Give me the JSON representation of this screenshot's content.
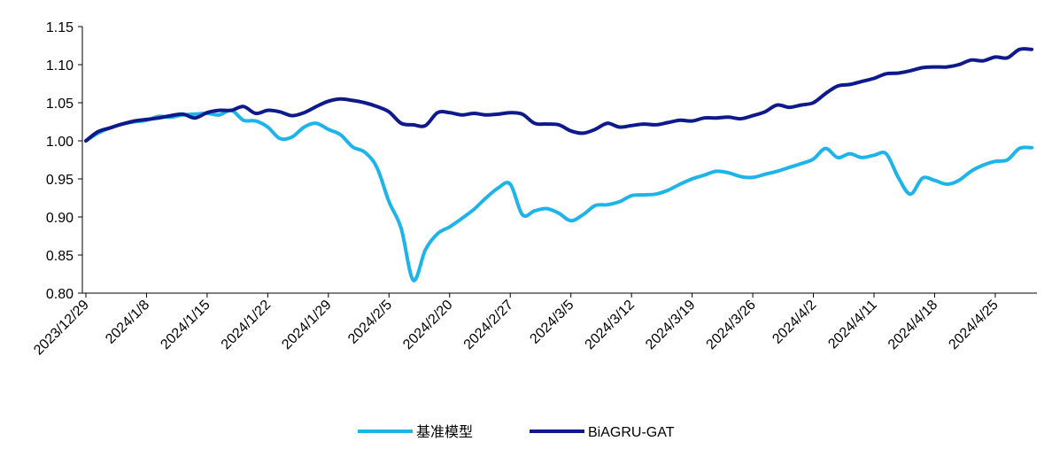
{
  "chart_data": {
    "type": "line",
    "title": "",
    "xlabel": "",
    "ylabel": "",
    "ylim": [
      0.8,
      1.15
    ],
    "yticks": [
      "0.80",
      "0.85",
      "0.90",
      "0.95",
      "1.00",
      "1.05",
      "1.10",
      "1.15"
    ],
    "xticks": [
      "2023/12/29",
      "2024/1/8",
      "2024/1/15",
      "2024/1/22",
      "2024/1/29",
      "2024/2/5",
      "2024/2/20",
      "2024/2/27",
      "2024/3/5",
      "2024/3/12",
      "2024/3/19",
      "2024/3/26",
      "2024/4/2",
      "2024/4/11",
      "2024/4/18",
      "2024/4/25"
    ],
    "grid": false,
    "legend_position": "bottom-center",
    "x": [
      "2023/12/29",
      "2024/1/2",
      "2024/1/3",
      "2024/1/4",
      "2024/1/5",
      "2024/1/8",
      "2024/1/9",
      "2024/1/10",
      "2024/1/11",
      "2024/1/12",
      "2024/1/15",
      "2024/1/16",
      "2024/1/17",
      "2024/1/18",
      "2024/1/19",
      "2024/1/22",
      "2024/1/23",
      "2024/1/24",
      "2024/1/25",
      "2024/1/26",
      "2024/1/29",
      "2024/1/30",
      "2024/1/31",
      "2024/2/1",
      "2024/2/2",
      "2024/2/5",
      "2024/2/6",
      "2024/2/7",
      "2024/2/8",
      "2024/2/19",
      "2024/2/20",
      "2024/2/21",
      "2024/2/22",
      "2024/2/23",
      "2024/2/26",
      "2024/2/27",
      "2024/2/28",
      "2024/2/29",
      "2024/3/1",
      "2024/3/4",
      "2024/3/5",
      "2024/3/6",
      "2024/3/7",
      "2024/3/8",
      "2024/3/11",
      "2024/3/12",
      "2024/3/13",
      "2024/3/14",
      "2024/3/15",
      "2024/3/18",
      "2024/3/19",
      "2024/3/20",
      "2024/3/21",
      "2024/3/22",
      "2024/3/25",
      "2024/3/26",
      "2024/3/27",
      "2024/3/28",
      "2024/3/29",
      "2024/4/1",
      "2024/4/2",
      "2024/4/3",
      "2024/4/8",
      "2024/4/9",
      "2024/4/10",
      "2024/4/11",
      "2024/4/12",
      "2024/4/15",
      "2024/4/16",
      "2024/4/17",
      "2024/4/18",
      "2024/4/19",
      "2024/4/22",
      "2024/4/23",
      "2024/4/24",
      "2024/4/25",
      "2024/4/26",
      "2024/4/29",
      "2024/4/30"
    ],
    "series": [
      {
        "name": "基准模型",
        "color": "#1EB4EA",
        "values": [
          1.0,
          1.01,
          1.017,
          1.022,
          1.025,
          1.027,
          1.032,
          1.031,
          1.034,
          1.035,
          1.036,
          1.034,
          1.04,
          1.027,
          1.026,
          1.018,
          1.003,
          1.005,
          1.018,
          1.023,
          1.015,
          1.008,
          0.992,
          0.985,
          0.965,
          0.92,
          0.885,
          0.817,
          0.857,
          0.878,
          0.887,
          0.898,
          0.91,
          0.925,
          0.938,
          0.943,
          0.903,
          0.908,
          0.911,
          0.905,
          0.895,
          0.903,
          0.915,
          0.916,
          0.92,
          0.928,
          0.929,
          0.93,
          0.935,
          0.943,
          0.95,
          0.955,
          0.96,
          0.958,
          0.953,
          0.952,
          0.956,
          0.96,
          0.965,
          0.97,
          0.976,
          0.99,
          0.978,
          0.983,
          0.978,
          0.981,
          0.983,
          0.952,
          0.93,
          0.951,
          0.948,
          0.943,
          0.948,
          0.96,
          0.968,
          0.973,
          0.975,
          0.99,
          0.991
        ]
      },
      {
        "name": "BiAGRU-GAT",
        "color": "#0E1A8C",
        "values": [
          1.0,
          1.012,
          1.017,
          1.022,
          1.026,
          1.028,
          1.03,
          1.033,
          1.035,
          1.03,
          1.037,
          1.04,
          1.04,
          1.045,
          1.036,
          1.04,
          1.038,
          1.033,
          1.037,
          1.045,
          1.052,
          1.055,
          1.053,
          1.05,
          1.045,
          1.038,
          1.023,
          1.021,
          1.02,
          1.037,
          1.037,
          1.034,
          1.036,
          1.034,
          1.035,
          1.037,
          1.035,
          1.023,
          1.022,
          1.021,
          1.013,
          1.01,
          1.015,
          1.023,
          1.018,
          1.02,
          1.022,
          1.021,
          1.024,
          1.027,
          1.026,
          1.03,
          1.03,
          1.031,
          1.029,
          1.033,
          1.038,
          1.047,
          1.044,
          1.047,
          1.05,
          1.062,
          1.072,
          1.074,
          1.078,
          1.082,
          1.088,
          1.089,
          1.092,
          1.096,
          1.097,
          1.097,
          1.1,
          1.106,
          1.105,
          1.11,
          1.109,
          1.12,
          1.12
        ]
      }
    ]
  }
}
